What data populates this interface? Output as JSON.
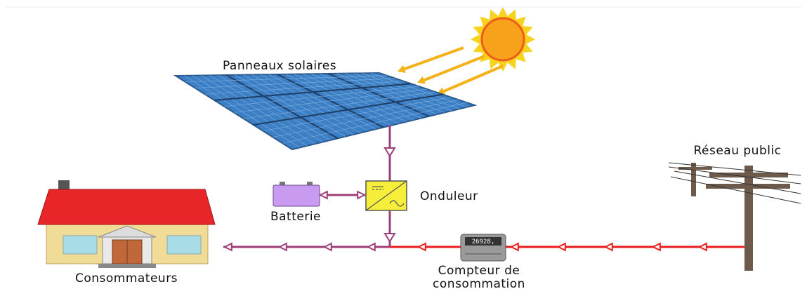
{
  "nodes": [
    {
      "id": "panels",
      "label": "Panneaux solaires"
    },
    {
      "id": "grid",
      "label": "Réseau public"
    },
    {
      "id": "inverter",
      "label": "Onduleur"
    },
    {
      "id": "battery",
      "label": "Batterie"
    },
    {
      "id": "consumers",
      "label": "Consommateurs"
    },
    {
      "id": "meter",
      "label": [
        "Compteur de",
        "consommation"
      ],
      "reading": "26928,"
    }
  ]
}
